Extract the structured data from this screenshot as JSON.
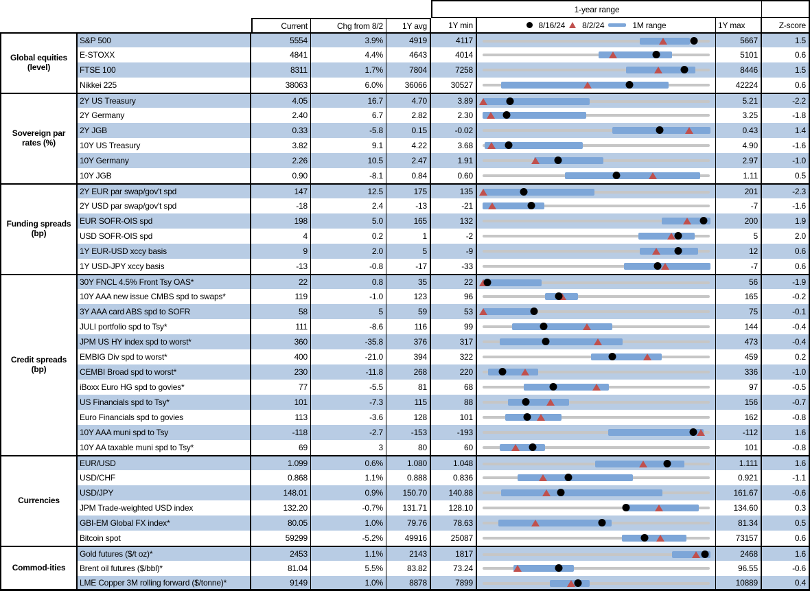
{
  "header": {
    "range_title": "1-year range",
    "col_current": "Current",
    "col_chg": "Chg from 8/2",
    "col_avg": "1Y avg",
    "col_min": "1Y min",
    "col_max": "1Y max",
    "col_z": "Z-score",
    "legend": {
      "dot_label": "8/16/24",
      "tri_label": "8/2/24",
      "bar_label": "1M range"
    }
  },
  "colors": {
    "stripe": "#B8CCE4",
    "bar": "#7DA6D8",
    "track": "#C6C6C6",
    "triangle": "#C0504D",
    "dot": "#000000"
  },
  "chart_data": {
    "type": "table",
    "note": "Each row has a min-to-max 1-year range track; dot = 8/16/24 value, triangle = 8/2/24 value, blue bar = 1M range. Fractions are positions along the track from 1Y min (0) to 1Y max (1).",
    "sections": [
      {
        "category": "Global equities (level)",
        "rows": [
          {
            "label": "S&P 500",
            "current": "5554",
            "chg": "3.9%",
            "avg": "4919",
            "min": "4117",
            "max": "5667",
            "z": "1.5",
            "bar": [
              0.69,
              0.91
            ],
            "dot": 0.927,
            "tri": 0.792
          },
          {
            "label": "E-STOXX",
            "current": "4841",
            "chg": "4.4%",
            "avg": "4643",
            "min": "4014",
            "max": "5101",
            "z": "0.6",
            "bar": [
              0.51,
              0.83
            ],
            "dot": 0.761,
            "tri": 0.573
          },
          {
            "label": "FTSE 100",
            "current": "8311",
            "chg": "1.7%",
            "avg": "7804",
            "min": "7258",
            "max": "8446",
            "z": "1.5",
            "bar": [
              0.63,
              0.935
            ],
            "dot": 0.886,
            "tri": 0.77
          },
          {
            "label": "Nikkei 225",
            "current": "38063",
            "chg": "6.0%",
            "avg": "36066",
            "min": "30527",
            "max": "42224",
            "z": "0.6",
            "bar": [
              0.08,
              0.815
            ],
            "dot": 0.644,
            "tri": 0.46
          }
        ]
      },
      {
        "category": "Sovereign par rates (%)",
        "rows": [
          {
            "label": "2Y US Treasury",
            "current": "4.05",
            "chg": "16.7",
            "avg": "4.70",
            "min": "3.89",
            "max": "5.21",
            "z": "-2.2",
            "bar": [
              0,
              0.47
            ],
            "dot": 0.121,
            "tri": 0.004
          },
          {
            "label": "2Y Germany",
            "current": "2.40",
            "chg": "6.7",
            "avg": "2.82",
            "min": "2.30",
            "max": "3.25",
            "z": "-1.8",
            "bar": [
              0,
              0.455
            ],
            "dot": 0.105,
            "tri": 0.035
          },
          {
            "label": "2Y JGB",
            "current": "0.33",
            "chg": "-5.8",
            "avg": "0.15",
            "min": "-0.02",
            "max": "0.43",
            "z": "1.4",
            "bar": [
              0.57,
              1
            ],
            "dot": 0.778,
            "tri": 0.907
          },
          {
            "label": "10Y US Treasury",
            "current": "3.82",
            "chg": "9.1",
            "avg": "4.22",
            "min": "3.68",
            "max": "4.90",
            "z": "-1.6",
            "bar": [
              0.01,
              0.44
            ],
            "dot": 0.115,
            "tri": 0.04
          },
          {
            "label": "10Y Germany",
            "current": "2.26",
            "chg": "10.5",
            "avg": "2.47",
            "min": "1.91",
            "max": "2.97",
            "z": "-1.0",
            "bar": [
              0.225,
              0.53
            ],
            "dot": 0.33,
            "tri": 0.231
          },
          {
            "label": "10Y JGB",
            "current": "0.90",
            "chg": "-8.1",
            "avg": "0.84",
            "min": "0.60",
            "max": "1.11",
            "z": "0.5",
            "bar": [
              0.36,
              0.955
            ],
            "dot": 0.588,
            "tri": 0.747
          }
        ]
      },
      {
        "category": "Funding spreads (bp)",
        "rows": [
          {
            "label": "2Y EUR par swap/gov't spd",
            "current": "147",
            "chg": "12.5",
            "avg": "175",
            "min": "135",
            "max": "201",
            "z": "-2.3",
            "bar": [
              0,
              0.49
            ],
            "dot": 0.182,
            "tri": 0.004
          },
          {
            "label": "2Y USD par swap/gov't spd",
            "current": "-18",
            "chg": "2.4",
            "avg": "-13",
            "min": "-21",
            "max": "-7",
            "z": "-1.6",
            "bar": [
              0,
              0.27
            ],
            "dot": 0.214,
            "tri": 0.043
          },
          {
            "label": "EUR SOFR-OIS spd",
            "current": "198",
            "chg": "5.0",
            "avg": "165",
            "min": "132",
            "max": "200",
            "z": "1.9",
            "bar": [
              0.785,
              1
            ],
            "dot": 0.971,
            "tri": 0.897
          },
          {
            "label": "USD SOFR-OIS spd",
            "current": "4",
            "chg": "0.2",
            "avg": "1",
            "min": "-2",
            "max": "5",
            "z": "2.0",
            "bar": [
              0.685,
              0.93
            ],
            "dot": 0.857,
            "tri": 0.829
          },
          {
            "label": "1Y EUR-USD xccy basis",
            "current": "9",
            "chg": "2.0",
            "avg": "5",
            "min": "-9",
            "max": "12",
            "z": "0.6",
            "bar": [
              0.69,
              0.945
            ],
            "dot": 0.857,
            "tri": 0.762
          },
          {
            "label": "1Y USD-JPY xccy basis",
            "current": "-13",
            "chg": "-0.8",
            "avg": "-17",
            "min": "-33",
            "max": "-7",
            "z": "0.6",
            "bar": [
              0.62,
              1
            ],
            "dot": 0.769,
            "tri": 0.8
          }
        ]
      },
      {
        "category": "Credit spreads (bp)",
        "rows": [
          {
            "label": "30Y FNCL 4.5% Front Tsy OAS*",
            "current": "22",
            "chg": "0.8",
            "avg": "35",
            "min": "22",
            "max": "56",
            "z": "-1.9",
            "bar": [
              0,
              0.26
            ],
            "dot": 0.02,
            "tri": 0.004
          },
          {
            "label": "10Y AAA new issue CMBS spd to swaps*",
            "current": "119",
            "chg": "-1.0",
            "avg": "123",
            "min": "96",
            "max": "165",
            "z": "-0.2",
            "bar": [
              0.275,
              0.42
            ],
            "dot": 0.333,
            "tri": 0.348
          },
          {
            "label": "3Y AAA card ABS spd to SOFR",
            "current": "58",
            "chg": "5",
            "avg": "59",
            "min": "53",
            "max": "75",
            "z": "-0.1",
            "bar": [
              0,
              0.226
            ],
            "dot": 0.227,
            "tri": 0.004
          },
          {
            "label": "JULI portfolio spd to Tsy*",
            "current": "111",
            "chg": "-8.6",
            "avg": "116",
            "min": "99",
            "max": "144",
            "z": "-0.4",
            "bar": [
              0.13,
              0.57
            ],
            "dot": 0.267,
            "tri": 0.458
          },
          {
            "label": "JPM US HY index spd to worst*",
            "current": "360",
            "chg": "-35.8",
            "avg": "376",
            "min": "317",
            "max": "473",
            "z": "-0.4",
            "bar": [
              0.075,
              0.615
            ],
            "dot": 0.276,
            "tri": 0.505
          },
          {
            "label": "EMBIG Div spd to worst*",
            "current": "400",
            "chg": "-21.0",
            "avg": "394",
            "min": "322",
            "max": "459",
            "z": "0.2",
            "bar": [
              0.475,
              0.785
            ],
            "dot": 0.569,
            "tri": 0.723
          },
          {
            "label": "CEMBI Broad spd to worst*",
            "current": "230",
            "chg": "-11.8",
            "avg": "268",
            "min": "220",
            "max": "336",
            "z": "-1.0",
            "bar": [
              0.025,
              0.245
            ],
            "dot": 0.086,
            "tri": 0.188
          },
          {
            "label": "iBoxx Euro HG spd to govies*",
            "current": "77",
            "chg": "-5.5",
            "avg": "81",
            "min": "68",
            "max": "97",
            "z": "-0.5",
            "bar": [
              0.18,
              0.555
            ],
            "dot": 0.31,
            "tri": 0.5
          },
          {
            "label": "US Financials spd to Tsy*",
            "current": "101",
            "chg": "-7.3",
            "avg": "115",
            "min": "88",
            "max": "156",
            "z": "-0.7",
            "bar": [
              0.11,
              0.38
            ],
            "dot": 0.191,
            "tri": 0.299
          },
          {
            "label": "Euro Financials spd to govies",
            "current": "113",
            "chg": "-3.6",
            "avg": "128",
            "min": "101",
            "max": "162",
            "z": "-0.8",
            "bar": [
              0.1,
              0.345
            ],
            "dot": 0.197,
            "tri": 0.256
          },
          {
            "label": "10Y AAA muni spd to Tsy",
            "current": "-118",
            "chg": "-2.7",
            "avg": "-153",
            "min": "-193",
            "max": "-112",
            "z": "1.6",
            "bar": [
              0.55,
              0.97
            ],
            "dot": 0.926,
            "tri": 0.959
          },
          {
            "label": "10Y AA taxable muni spd to Tsy*",
            "current": "69",
            "chg": "3",
            "avg": "80",
            "min": "60",
            "max": "101",
            "z": "-0.8",
            "bar": [
              0.075,
              0.275
            ],
            "dot": 0.22,
            "tri": 0.146
          }
        ]
      },
      {
        "category": "Currencies",
        "rows": [
          {
            "label": "EUR/USD",
            "current": "1.099",
            "chg": "0.6%",
            "avg": "1.080",
            "min": "1.048",
            "max": "1.111",
            "z": "1.6",
            "bar": [
              0.495,
              0.885
            ],
            "dot": 0.81,
            "tri": 0.705
          },
          {
            "label": "USD/CHF",
            "current": "0.868",
            "chg": "1.1%",
            "avg": "0.888",
            "min": "0.836",
            "max": "0.921",
            "z": "-1.1",
            "bar": [
              0.155,
              0.66
            ],
            "dot": 0.376,
            "tri": 0.266
          },
          {
            "label": "USD/JPY",
            "current": "148.01",
            "chg": "0.9%",
            "avg": "150.70",
            "min": "140.88",
            "max": "161.67",
            "z": "-0.6",
            "bar": [
              0.08,
              0.79
            ],
            "dot": 0.343,
            "tri": 0.279
          },
          {
            "label": "JPM Trade-weighted USD index",
            "current": "132.20",
            "chg": "-0.7%",
            "avg": "131.71",
            "min": "128.10",
            "max": "134.60",
            "z": "0.3",
            "bar": [
              0.625,
              0.95
            ],
            "dot": 0.631,
            "tri": 0.774
          },
          {
            "label": "GBI-EM Global FX index*",
            "current": "80.05",
            "chg": "1.0%",
            "avg": "79.76",
            "min": "78.63",
            "max": "81.34",
            "z": "0.5",
            "bar": [
              0.07,
              0.565
            ],
            "dot": 0.524,
            "tri": 0.232
          },
          {
            "label": "Bitcoin spot",
            "current": "59299",
            "chg": "-5.2%",
            "avg": "49916",
            "min": "25087",
            "max": "73157",
            "z": "0.6",
            "bar": [
              0.61,
              0.895
            ],
            "dot": 0.712,
            "tri": 0.779
          }
        ]
      },
      {
        "category": "Commod-ities",
        "rows": [
          {
            "label": "Gold futures ($/t oz)*",
            "current": "2453",
            "chg": "1.1%",
            "avg": "2143",
            "min": "1817",
            "max": "2468",
            "z": "1.6",
            "bar": [
              0.83,
              1
            ],
            "dot": 0.977,
            "tri": 0.936
          },
          {
            "label": "Brent oil futures ($/bbl)*",
            "current": "81.04",
            "chg": "5.5%",
            "avg": "83.82",
            "min": "73.24",
            "max": "96.55",
            "z": "-0.6",
            "bar": [
              0.135,
              0.4
            ],
            "dot": 0.335,
            "tri": 0.154
          },
          {
            "label": "LME Copper 3M rolling forward ($/tonne)*",
            "current": "9149",
            "chg": "1.0%",
            "avg": "8878",
            "min": "7899",
            "max": "10889",
            "z": "0.4",
            "bar": [
              0.295,
              0.47
            ],
            "dot": 0.418,
            "tri": 0.388
          }
        ]
      }
    ]
  }
}
